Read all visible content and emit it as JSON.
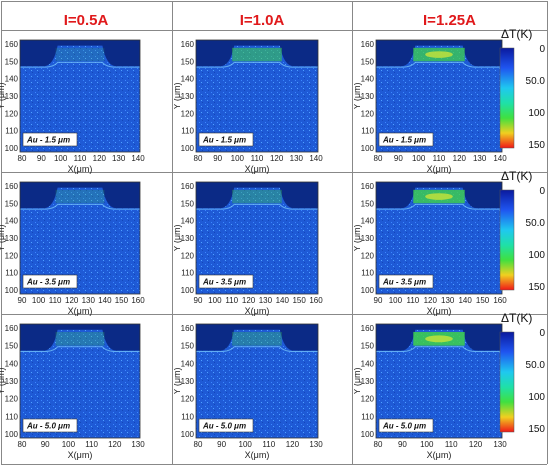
{
  "headers": [
    "I=0.5A",
    "I=1.0A",
    "I=1.25A"
  ],
  "rows": [
    {
      "label": "Au - 1.5 μm",
      "x_ticks": [
        [
          "80",
          "90",
          "100",
          "110",
          "120",
          "130",
          "140"
        ],
        [
          "80",
          "90",
          "100",
          "110",
          "120",
          "130",
          "140"
        ],
        [
          "80",
          "90",
          "100",
          "110",
          "120",
          "130",
          "140"
        ]
      ]
    },
    {
      "label": "Au - 3.5 μm",
      "x_ticks": [
        [
          "90",
          "100",
          "110",
          "120",
          "130",
          "140",
          "150",
          "160"
        ],
        [
          "90",
          "100",
          "110",
          "120",
          "130",
          "140",
          "150",
          "160"
        ],
        [
          "90",
          "100",
          "110",
          "120",
          "130",
          "140",
          "150",
          "160"
        ]
      ]
    },
    {
      "label": "Au - 5.0 μm",
      "x_ticks": [
        [
          "80",
          "90",
          "100",
          "110",
          "120",
          "130"
        ],
        [
          "80",
          "90",
          "100",
          "110",
          "120",
          "130"
        ],
        [
          "80",
          "90",
          "100",
          "110",
          "120",
          "130"
        ]
      ]
    }
  ],
  "y_ticks": [
    "160",
    "150",
    "140",
    "130",
    "120",
    "110",
    "100"
  ],
  "x_axis_label": "X(μm)",
  "y_axis_label": "Y (μm)",
  "colorbar": {
    "title": "ΔT(K)",
    "ticks": [
      "0",
      "50.0",
      "100",
      "150"
    ]
  },
  "colors": {
    "header": "#e0191b",
    "bg_blue": "#1e5ad6",
    "dark": "#0b2a86",
    "hot_green": "#3ed24a",
    "hot_yellow": "#c8e43a"
  }
}
